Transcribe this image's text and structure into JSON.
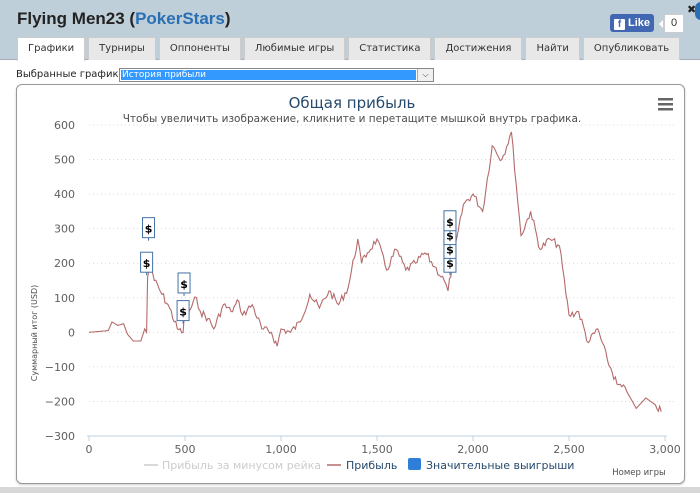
{
  "header": {
    "player_name": "Flying Men23",
    "site_name": "PokerStars",
    "paren_open": " (",
    "paren_close": ")",
    "fb_like_label": "Like",
    "fb_like_count": "0",
    "close_symbol": "✖"
  },
  "tabs": [
    {
      "label": "Графики",
      "active": true
    },
    {
      "label": "Турниры"
    },
    {
      "label": "Оппоненты"
    },
    {
      "label": "Любимые игры"
    },
    {
      "label": "Статистика"
    },
    {
      "label": "Достижения"
    },
    {
      "label": "Найти"
    },
    {
      "label": "Опубликовать"
    }
  ],
  "selector": {
    "label": "Выбранные графики:",
    "value": "История прибыли",
    "arrow": "⌄"
  },
  "chart": {
    "menu_icon": "≡"
  },
  "chart_data": {
    "type": "line",
    "title": "Общая прибыль",
    "subtitle": "Чтобы увеличить изображение, кликните и перетащите мышкой внутрь графика.",
    "xlabel": "Номер игры",
    "ylabel": "Суммарный итог (USD)",
    "xlim": [
      0,
      3000
    ],
    "ylim": [
      -300,
      600
    ],
    "x_ticks": [
      "0",
      "500",
      "1,000",
      "1,500",
      "2,000",
      "2,500",
      "3,000"
    ],
    "y_ticks": [
      "600",
      "500",
      "400",
      "300",
      "200",
      "100",
      "0",
      "-100",
      "-200",
      "-300"
    ],
    "grid": "horizontal dotted",
    "legend": [
      {
        "name": "Прибыль за минусом рейка",
        "color": "#cccccc",
        "hidden": true
      },
      {
        "name": "Прибыль",
        "color": "#b56a6a"
      },
      {
        "name": "Значительные выигрыши",
        "color": "#2f7ed8",
        "type": "flag"
      }
    ],
    "series": [
      {
        "name": "Прибыль",
        "x": [
          0,
          100,
          120,
          150,
          180,
          200,
          230,
          270,
          290,
          300,
          305,
          320,
          340,
          380,
          420,
          460,
          490,
          500,
          520,
          560,
          580,
          620,
          650,
          700,
          740,
          780,
          800,
          850,
          900,
          950,
          980,
          1000,
          1050,
          1100,
          1150,
          1200,
          1250,
          1300,
          1350,
          1400,
          1420,
          1450,
          1500,
          1550,
          1600,
          1650,
          1700,
          1750,
          1800,
          1850,
          1870,
          1900,
          1950,
          2000,
          2050,
          2100,
          2150,
          2200,
          2250,
          2300,
          2350,
          2400,
          2450,
          2500,
          2550,
          2600,
          2650,
          2700,
          2750,
          2800,
          2830,
          2850,
          2900,
          2950,
          2980
        ],
        "values": [
          0,
          5,
          30,
          20,
          25,
          -5,
          -25,
          -25,
          10,
          0,
          160,
          200,
          150,
          110,
          70,
          10,
          0,
          80,
          60,
          100,
          60,
          40,
          10,
          80,
          60,
          90,
          50,
          80,
          10,
          0,
          -40,
          10,
          0,
          30,
          110,
          70,
          120,
          80,
          130,
          270,
          200,
          230,
          270,
          180,
          240,
          180,
          200,
          230,
          190,
          150,
          120,
          220,
          370,
          400,
          350,
          540,
          500,
          580,
          280,
          350,
          240,
          270,
          250,
          50,
          60,
          -30,
          10,
          -80,
          -150,
          -170,
          -200,
          -220,
          -190,
          -210,
          -230
        ]
      }
    ],
    "flags": [
      {
        "x": 300,
        "y": 200,
        "label": "$"
      },
      {
        "x": 310,
        "y": 300,
        "label": "$"
      },
      {
        "x": 490,
        "y": 60,
        "label": "$"
      },
      {
        "x": 495,
        "y": 140,
        "label": "$"
      },
      {
        "x": 1880,
        "y": 200,
        "label": "$"
      },
      {
        "x": 1880,
        "y": 240,
        "label": "$"
      },
      {
        "x": 1880,
        "y": 280,
        "label": "$"
      },
      {
        "x": 1880,
        "y": 320,
        "label": "$"
      }
    ]
  }
}
